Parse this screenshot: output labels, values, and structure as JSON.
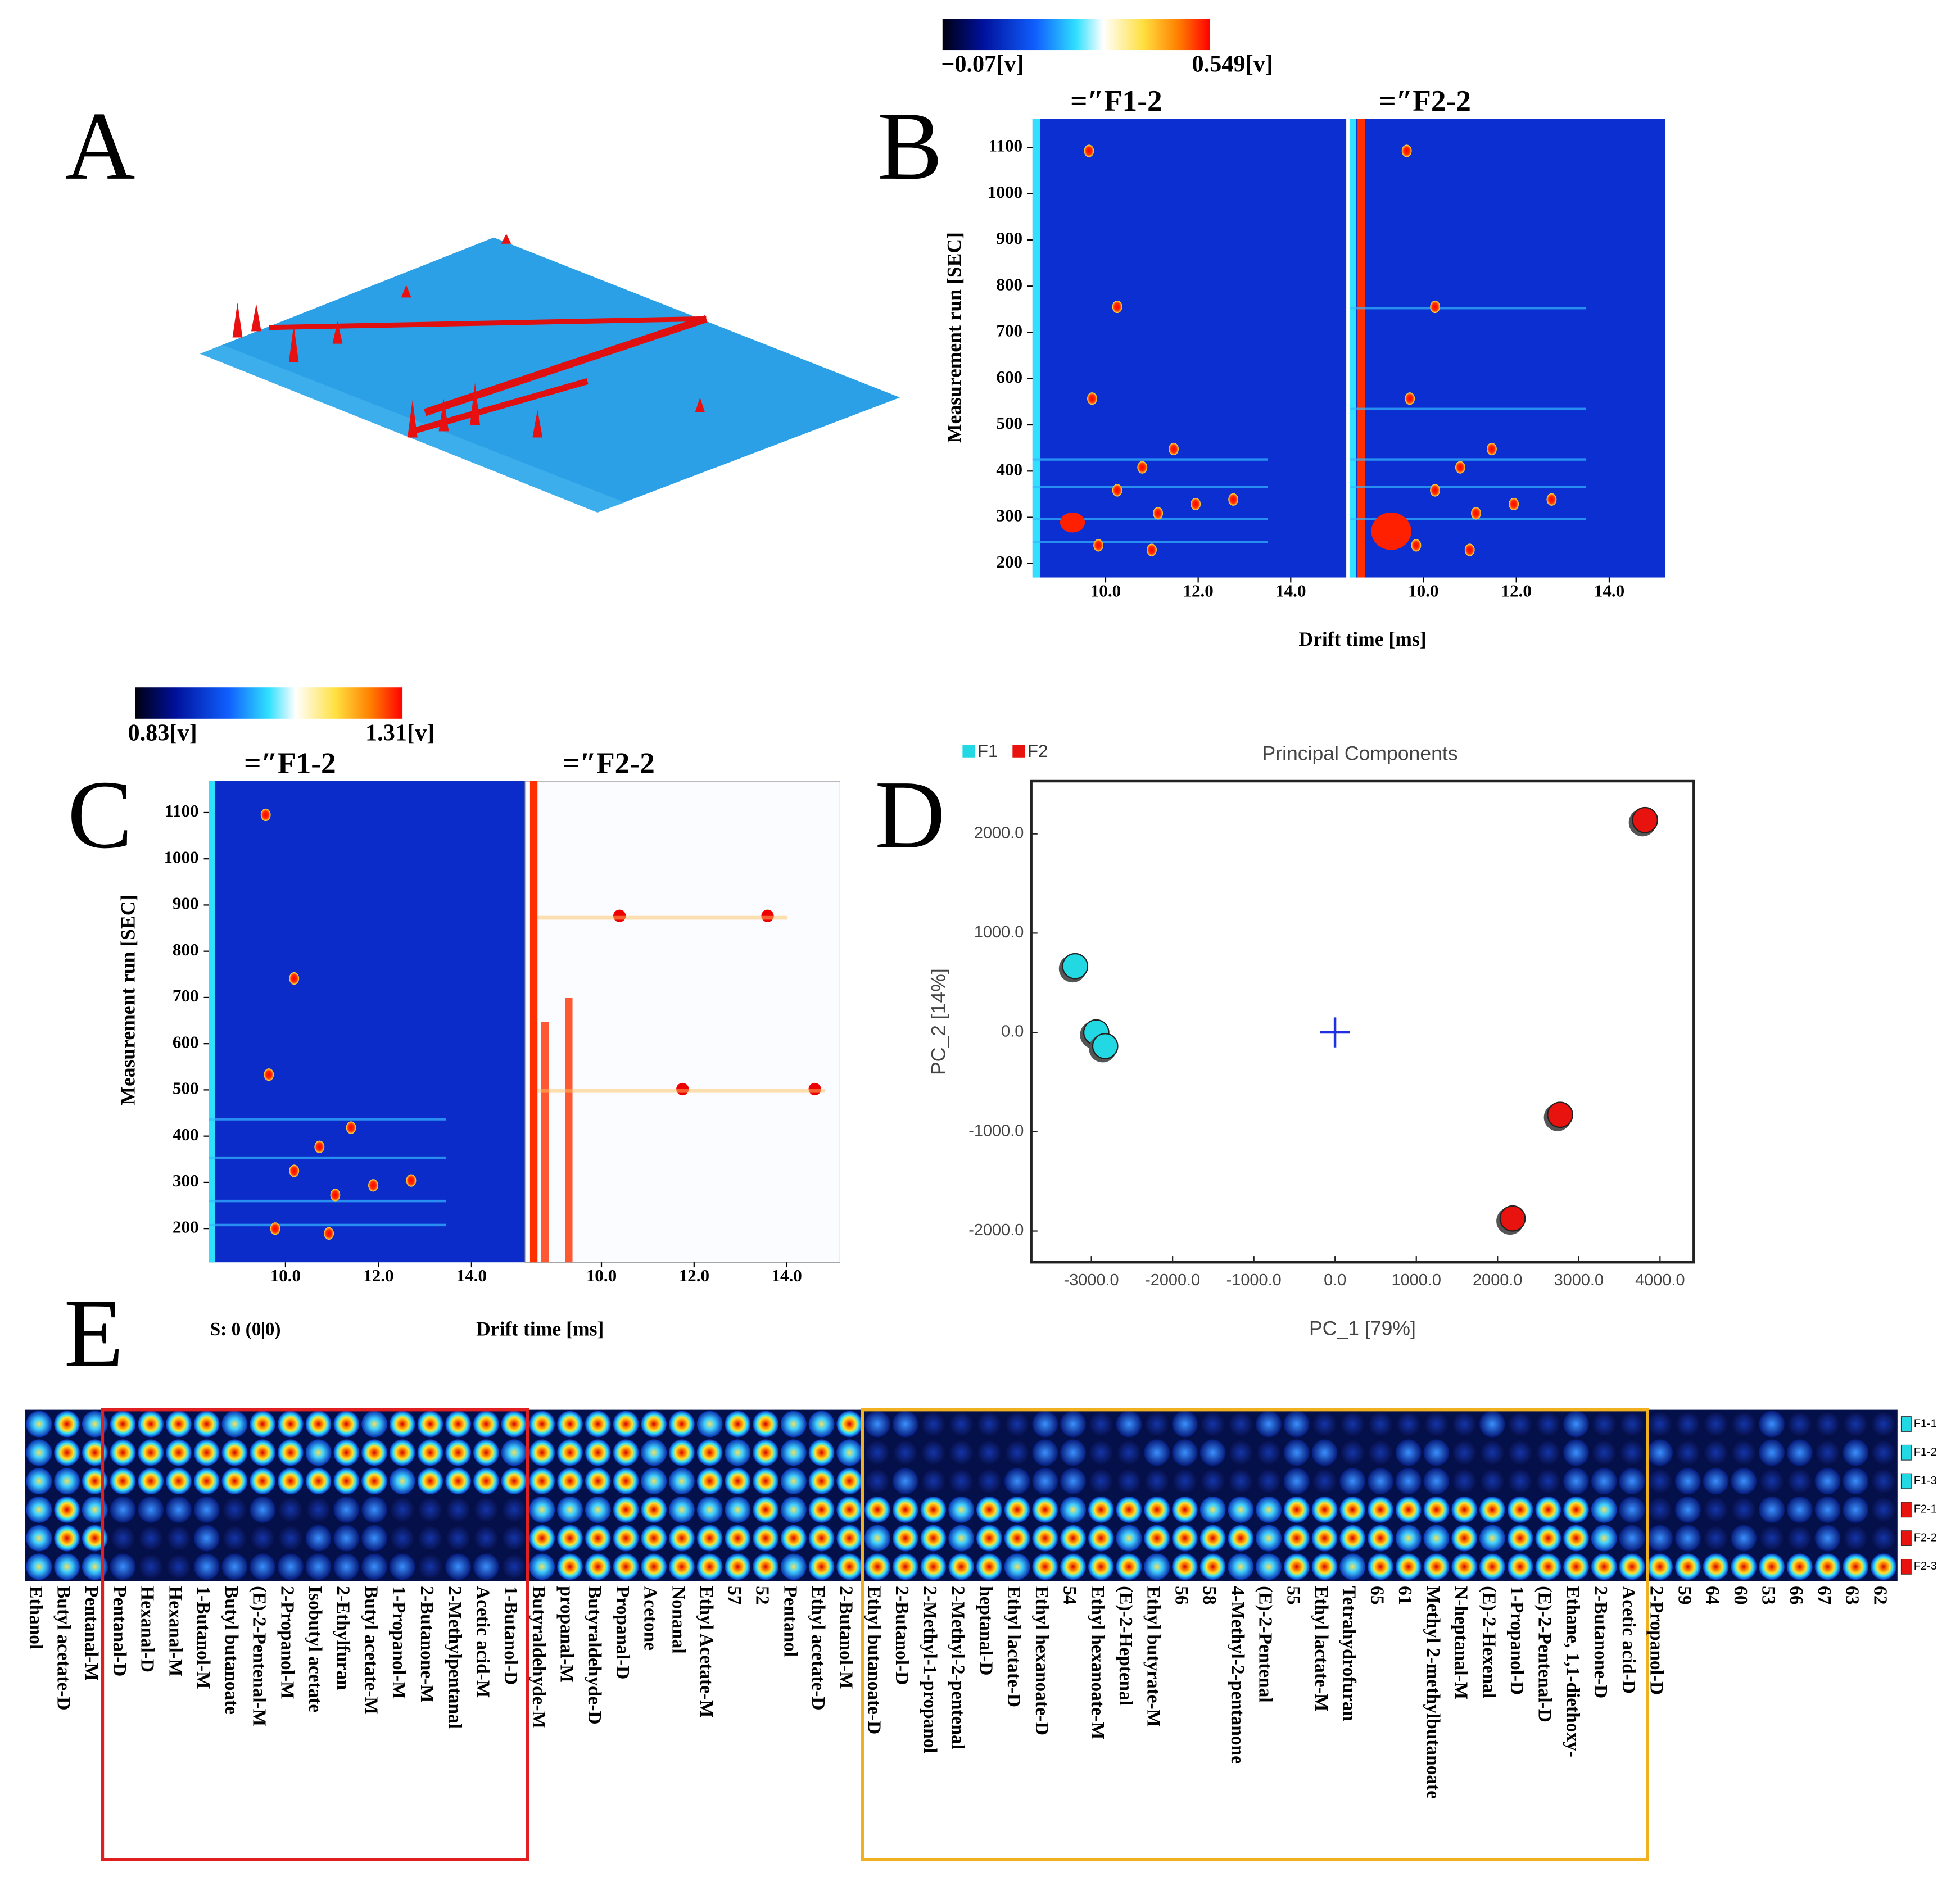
{
  "panel_labels": [
    "A",
    "B",
    "C",
    "D",
    "E"
  ],
  "B": {
    "colorbar": {
      "min_label": "−0.07[v]",
      "max_label": "0.549[v]"
    },
    "titles": [
      "=″F1-2",
      "=″F2-2"
    ],
    "ylabel": "Measurement run [SEC]",
    "xlabel": "Drift time [ms]",
    "ylim": [
      170,
      1162
    ],
    "yticks": [
      200,
      300,
      400,
      500,
      600,
      700,
      800,
      900,
      1000,
      1100
    ],
    "xlim": [
      8.42,
      15.2
    ],
    "xticks": [
      {
        "value": 10,
        "label": "10.0"
      },
      {
        "value": 12,
        "label": "12.0"
      },
      {
        "value": 14,
        "label": "14.0"
      }
    ]
  },
  "C": {
    "colorbar": {
      "min_label": "0.83[v]",
      "max_label": "1.31[v]"
    },
    "titles": [
      "=″F1-2",
      "=″F2-2"
    ],
    "ylabel": "Measurement run [SEC]",
    "xlabel": "Drift time [ms]",
    "status": "S: 0 (0|0)",
    "ylim": [
      127,
      1168
    ],
    "yticks": [
      200,
      300,
      400,
      500,
      600,
      700,
      800,
      900,
      1000,
      1100
    ],
    "xlim": [
      8.35,
      15.15
    ],
    "xticks": [
      {
        "value": 10,
        "label": "10.0"
      },
      {
        "value": 12,
        "label": "12.0"
      },
      {
        "value": 14,
        "label": "14.0"
      }
    ]
  },
  "chart_data": {
    "type": "scatter",
    "title": "Principal Components",
    "xlabel": "PC_1 [79%]",
    "ylabel": "PC_2 [14%]",
    "xlim": [
      -3740,
      4415
    ],
    "ylim": [
      -2315,
      2530
    ],
    "xticks": [
      {
        "value": -3000,
        "label": "-3000.0"
      },
      {
        "value": -2000,
        "label": "-2000.0"
      },
      {
        "value": -1000,
        "label": "-1000.0"
      },
      {
        "value": 0,
        "label": "0.0"
      },
      {
        "value": 1000,
        "label": "1000.0"
      },
      {
        "value": 2000,
        "label": "2000.0"
      },
      {
        "value": 3000,
        "label": "3000.0"
      },
      {
        "value": 4000,
        "label": "4000.0"
      }
    ],
    "yticks": [
      {
        "value": -2000,
        "label": "-2000.0"
      },
      {
        "value": -1000,
        "label": "-1000.0"
      },
      {
        "value": 0,
        "label": "0.0"
      },
      {
        "value": 1000,
        "label": "1000.0"
      },
      {
        "value": 2000,
        "label": "2000.0"
      }
    ],
    "legend": "top-left",
    "series": [
      {
        "name": "F1",
        "color": "#22d8e2",
        "x": [
          -3200,
          -2940,
          -2830
        ],
        "values": [
          667,
          0,
          -138
        ]
      },
      {
        "name": "F2",
        "color": "#e8120f",
        "x": [
          3815,
          2770,
          2185
        ],
        "values": [
          2138,
          -830,
          -1874
        ]
      }
    ]
  },
  "E": {
    "rows": [
      "F1-1",
      "F1-2",
      "F1-3",
      "F2-1",
      "F2-2",
      "F2-3"
    ],
    "columns": [
      "Ethanol",
      "Butyl acetate-D",
      "Pentanal-M",
      "Pentanal-D",
      "Hexanal-D",
      "Hexanal-M",
      "1-Butanol-M",
      "Butyl butanoate",
      "(E)-2-Pentenal-M",
      "2-Propanol-M",
      "Isobutyl acetate",
      "2-Ethylfuran",
      "Butyl acetate-M",
      "1-Propanol-M",
      "2-Butanone-M",
      "2-Methylpentanal",
      "Acetic acid-M",
      "1-Butanol-D",
      "Butyraldehyde-M",
      "propanal-M",
      "Butyraldehyde-D",
      "Propanal-D",
      "Acetone",
      "Nonanal",
      "Ethyl Acetate-M",
      "57",
      "52",
      "Pentanol",
      "Ethyl acetate-D",
      "2-Butanol-M",
      "Ethyl butanoate-D",
      "2-Butanol-D",
      "2-Methyl-1-propanol",
      "2-Methyl-2-pentenal",
      "heptanal-D",
      "Ethyl lactate-D",
      "Ethyl hexanoate-D",
      "54",
      "Ethyl hexanoate-M",
      "(E)-2-Heptenal",
      "Ethyl butyrate-M",
      "56",
      "58",
      "4-Methyl-2-pentanone",
      "(E)-2-Pentenal",
      "55",
      "Ethyl lactate-M",
      "Tetrahydrofuran",
      "65",
      "61",
      "Methyl 2-methylbutanoate",
      "N-heptanal-M",
      "(E)-2-Hexenal",
      "1-Propanol-D",
      "(E)-2-Pentenal-D",
      "Ethane, 1,1-diethoxy-",
      "2-Butanone-D",
      "Acetic acid-D",
      "2-Propanol-D",
      "59",
      "64",
      "60",
      "53",
      "66",
      "67",
      "63",
      "62"
    ]
  }
}
